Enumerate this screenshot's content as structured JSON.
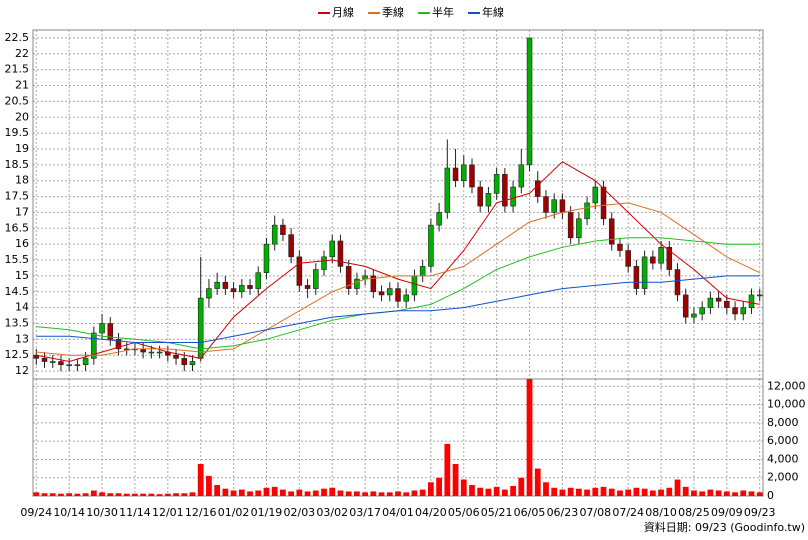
{
  "chart_data": [
    {
      "type": "candlestick",
      "legend": "top",
      "up_color": "#00b000",
      "down_color": "#a00000",
      "xlim": [
        -0.4,
        88.4
      ],
      "ylim": [
        11.75,
        22.75
      ],
      "yticks": [
        12,
        12.5,
        13,
        13.5,
        14,
        14.5,
        15,
        15.5,
        16,
        16.5,
        17,
        17.5,
        18,
        18.5,
        19,
        19.5,
        20,
        20.5,
        21,
        21.5,
        22,
        22.5
      ],
      "grid": true,
      "open": [
        12.5,
        12.4,
        12.3,
        12.3,
        12.2,
        12.2,
        12.2,
        12.4,
        13.2,
        13.5,
        13.0,
        12.7,
        12.7,
        12.7,
        12.6,
        12.6,
        12.6,
        12.5,
        12.4,
        12.2,
        12.4,
        14.3,
        14.6,
        14.8,
        14.6,
        14.5,
        14.7,
        14.6,
        15.1,
        16.0,
        16.6,
        16.3,
        15.6,
        14.7,
        14.6,
        15.2,
        15.6,
        16.1,
        15.3,
        14.6,
        14.9,
        15.0,
        14.5,
        14.4,
        14.6,
        14.2,
        14.4,
        15.0,
        15.3,
        16.6,
        17.0,
        18.4,
        18.0,
        18.5,
        17.8,
        17.2,
        17.6,
        18.2,
        17.2,
        17.8,
        18.5,
        18.0,
        17.5,
        17.0,
        17.4,
        17.0,
        16.2,
        16.8,
        17.3,
        17.8,
        16.8,
        16.0,
        15.8,
        15.3,
        14.6,
        15.6,
        15.4,
        15.9,
        15.2,
        14.4,
        13.7,
        13.8,
        14.0,
        14.3,
        14.2,
        14.0,
        13.8,
        14.0,
        14.4
      ],
      "high": [
        12.7,
        12.6,
        12.5,
        12.5,
        12.4,
        12.4,
        12.6,
        13.4,
        13.8,
        13.7,
        13.2,
        12.9,
        12.9,
        12.9,
        12.8,
        12.8,
        12.8,
        12.7,
        12.6,
        12.5,
        15.6,
        14.9,
        15.1,
        15.0,
        14.8,
        14.9,
        14.9,
        15.3,
        16.2,
        16.9,
        16.8,
        16.5,
        15.8,
        14.9,
        15.4,
        15.8,
        16.3,
        16.3,
        15.5,
        15.1,
        15.2,
        15.2,
        14.7,
        14.8,
        14.8,
        14.6,
        15.2,
        15.5,
        16.8,
        17.3,
        19.3,
        19.0,
        18.8,
        18.7,
        18.0,
        17.8,
        18.4,
        18.4,
        18.0,
        19.0,
        22.5,
        18.3,
        17.7,
        17.6,
        17.6,
        17.2,
        17.0,
        17.5,
        18.0,
        18.0,
        17.0,
        16.2,
        16.0,
        15.5,
        15.8,
        15.8,
        16.1,
        16.1,
        15.4,
        14.6,
        14.0,
        14.2,
        14.5,
        14.5,
        14.4,
        14.2,
        14.2,
        14.6,
        14.6
      ],
      "low": [
        12.2,
        12.1,
        12.1,
        12.0,
        12.0,
        12.0,
        12.0,
        12.2,
        13.0,
        12.8,
        12.5,
        12.5,
        12.5,
        12.4,
        12.4,
        12.4,
        12.3,
        12.2,
        12.0,
        12.0,
        12.3,
        14.0,
        14.4,
        14.4,
        14.3,
        14.3,
        14.4,
        14.4,
        14.9,
        15.8,
        16.1,
        15.4,
        14.5,
        14.3,
        14.4,
        15.0,
        15.4,
        15.1,
        14.4,
        14.4,
        14.7,
        14.3,
        14.2,
        14.2,
        14.0,
        14.0,
        14.2,
        14.8,
        15.1,
        16.4,
        16.8,
        17.8,
        17.8,
        17.6,
        17.0,
        17.0,
        17.4,
        17.0,
        17.0,
        17.6,
        18.3,
        17.3,
        16.8,
        16.8,
        16.8,
        16.0,
        16.0,
        16.6,
        17.1,
        16.6,
        15.8,
        15.6,
        15.1,
        14.4,
        14.4,
        15.2,
        15.2,
        15.0,
        14.2,
        13.5,
        13.5,
        13.6,
        13.8,
        14.0,
        13.8,
        13.6,
        13.6,
        13.8,
        14.2
      ],
      "close": [
        12.4,
        12.3,
        12.3,
        12.2,
        12.2,
        12.2,
        12.4,
        13.2,
        13.5,
        13.0,
        12.7,
        12.7,
        12.7,
        12.6,
        12.6,
        12.6,
        12.5,
        12.4,
        12.2,
        12.3,
        14.3,
        14.6,
        14.8,
        14.6,
        14.5,
        14.7,
        14.6,
        15.1,
        16.0,
        16.6,
        16.3,
        15.6,
        14.7,
        14.6,
        15.2,
        15.6,
        16.1,
        15.3,
        14.6,
        14.9,
        15.0,
        14.5,
        14.4,
        14.6,
        14.2,
        14.4,
        15.0,
        15.3,
        16.6,
        17.0,
        18.4,
        18.0,
        18.5,
        17.8,
        17.2,
        17.6,
        18.2,
        17.2,
        17.8,
        18.5,
        22.5,
        17.5,
        17.0,
        17.4,
        17.0,
        16.2,
        16.8,
        17.3,
        17.8,
        16.8,
        16.0,
        15.8,
        15.3,
        14.6,
        15.6,
        15.4,
        15.9,
        15.2,
        14.4,
        13.7,
        13.8,
        14.0,
        14.3,
        14.2,
        14.0,
        13.8,
        14.0,
        14.4,
        14.4
      ],
      "series": [
        {
          "name": "月線",
          "color": "#d00000",
          "x": [
            0,
            4,
            8,
            12,
            16,
            20,
            24,
            28,
            32,
            36,
            40,
            44,
            48,
            52,
            56,
            60,
            64,
            68,
            72,
            76,
            80,
            84,
            88
          ],
          "values": [
            12.5,
            12.3,
            12.6,
            12.9,
            12.6,
            12.4,
            13.7,
            14.6,
            15.4,
            15.5,
            15.3,
            14.9,
            14.6,
            15.8,
            17.3,
            17.6,
            18.6,
            18.0,
            17.0,
            16.0,
            15.2,
            14.3,
            14.1
          ]
        },
        {
          "name": "季線",
          "color": "#e07020",
          "x": [
            0,
            4,
            8,
            12,
            16,
            20,
            24,
            28,
            32,
            36,
            40,
            44,
            48,
            52,
            56,
            60,
            64,
            68,
            72,
            76,
            80,
            84,
            88
          ],
          "values": [
            12.6,
            12.5,
            12.5,
            12.7,
            12.7,
            12.6,
            12.7,
            13.3,
            13.9,
            14.5,
            14.9,
            15.0,
            15.0,
            15.3,
            16.0,
            16.7,
            17.0,
            17.2,
            17.3,
            17.0,
            16.3,
            15.6,
            15.1
          ]
        },
        {
          "name": "半年",
          "color": "#20c020",
          "x": [
            0,
            4,
            8,
            12,
            16,
            20,
            24,
            28,
            32,
            36,
            40,
            44,
            48,
            52,
            56,
            60,
            64,
            68,
            72,
            76,
            80,
            84,
            88
          ],
          "values": [
            13.4,
            13.3,
            13.1,
            13.0,
            12.9,
            12.7,
            12.8,
            13.0,
            13.3,
            13.6,
            13.8,
            13.9,
            14.1,
            14.6,
            15.2,
            15.6,
            15.9,
            16.1,
            16.2,
            16.2,
            16.1,
            16.0,
            16.0
          ]
        },
        {
          "name": "年線",
          "color": "#1050d0",
          "x": [
            0,
            4,
            8,
            12,
            16,
            20,
            24,
            28,
            32,
            36,
            40,
            44,
            48,
            52,
            56,
            60,
            64,
            68,
            72,
            76,
            80,
            84,
            88
          ],
          "values": [
            13.1,
            13.1,
            13.0,
            12.9,
            12.9,
            12.9,
            13.1,
            13.3,
            13.5,
            13.7,
            13.8,
            13.9,
            13.9,
            14.0,
            14.2,
            14.4,
            14.6,
            14.7,
            14.8,
            14.8,
            14.9,
            15.0,
            15.0
          ]
        }
      ]
    },
    {
      "type": "bar",
      "color": "#ff0000",
      "grid": true,
      "xlim": [
        -0.4,
        88.4
      ],
      "ylim": [
        0,
        12800
      ],
      "yticks": [
        0,
        {
          "value": 2000,
          "label": "2,000"
        },
        {
          "value": 4000,
          "label": "4,000"
        },
        {
          "value": 6000,
          "label": "6,000"
        },
        {
          "value": 8000,
          "label": "8,000"
        },
        {
          "value": 10000,
          "label": "10,000"
        },
        {
          "value": 12000,
          "label": "12,000"
        }
      ],
      "xticks": [
        {
          "value": 0,
          "label": "09/24"
        },
        {
          "value": 4,
          "label": "10/14"
        },
        {
          "value": 8,
          "label": "10/30"
        },
        {
          "value": 12,
          "label": "11/14"
        },
        {
          "value": 16,
          "label": "12/01"
        },
        {
          "value": 20,
          "label": "12/16"
        },
        {
          "value": 24,
          "label": "01/02"
        },
        {
          "value": 28,
          "label": "01/19"
        },
        {
          "value": 32,
          "label": "02/03"
        },
        {
          "value": 36,
          "label": "03/02"
        },
        {
          "value": 40,
          "label": "03/17"
        },
        {
          "value": 44,
          "label": "04/01"
        },
        {
          "value": 48,
          "label": "04/20"
        },
        {
          "value": 52,
          "label": "05/06"
        },
        {
          "value": 56,
          "label": "05/21"
        },
        {
          "value": 60,
          "label": "06/05"
        },
        {
          "value": 64,
          "label": "06/23"
        },
        {
          "value": 68,
          "label": "07/08"
        },
        {
          "value": 72,
          "label": "07/24"
        },
        {
          "value": 76,
          "label": "08/10"
        },
        {
          "value": 80,
          "label": "08/25"
        },
        {
          "value": 84,
          "label": "09/09"
        },
        {
          "value": 88,
          "label": "09/23"
        }
      ],
      "values": [
        400,
        300,
        300,
        250,
        300,
        250,
        300,
        600,
        400,
        300,
        300,
        250,
        250,
        250,
        250,
        200,
        250,
        300,
        300,
        400,
        3500,
        2200,
        1200,
        800,
        600,
        700,
        500,
        600,
        900,
        1000,
        700,
        500,
        700,
        500,
        600,
        800,
        900,
        600,
        500,
        500,
        400,
        500,
        400,
        400,
        500,
        400,
        600,
        700,
        1500,
        2000,
        5700,
        3500,
        1800,
        1200,
        900,
        800,
        1000,
        700,
        1100,
        2000,
        12800,
        3000,
        1500,
        900,
        700,
        900,
        800,
        700,
        900,
        1000,
        800,
        600,
        700,
        900,
        800,
        600,
        700,
        900,
        1800,
        1000,
        600,
        500,
        700,
        600,
        500,
        400,
        600,
        500,
        400
      ],
      "source": "資料日期: 09/23 (Goodinfo.tw)"
    }
  ]
}
